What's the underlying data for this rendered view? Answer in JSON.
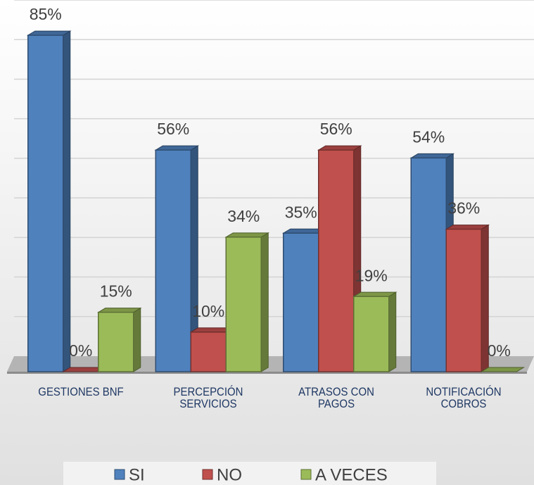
{
  "chart_data": {
    "type": "bar3d",
    "categories": [
      "GESTIONES BNF",
      "PERCEPCIÓN SERVICIOS",
      "ATRASOS CON PAGOS",
      "NOTIFICACIÓN COBROS"
    ],
    "series": [
      {
        "name": "SI",
        "color": "#4f81bd",
        "values": [
          85,
          56,
          35,
          54
        ],
        "value_labels": [
          "85%",
          "56%",
          "35%",
          "54%"
        ]
      },
      {
        "name": "NO",
        "color": "#c0504d",
        "values": [
          0,
          10,
          56,
          36
        ],
        "value_labels": [
          "0%",
          "10%",
          "56%",
          "36%"
        ]
      },
      {
        "name": "A VECES",
        "color": "#9bbb59",
        "values": [
          15,
          34,
          19,
          0
        ],
        "value_labels": [
          "15%",
          "34%",
          "19%",
          "0%"
        ]
      }
    ],
    "ylim": [
      0,
      90
    ],
    "yticks": [
      0,
      10,
      20,
      30,
      40,
      50,
      60,
      70,
      80,
      90
    ],
    "grid": true,
    "legend": "bottom"
  }
}
